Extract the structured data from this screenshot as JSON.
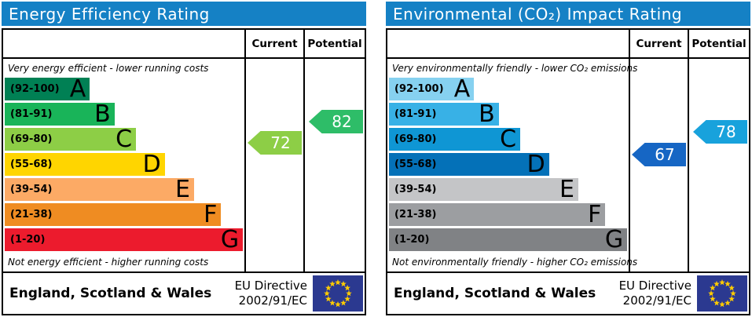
{
  "chart_data": [
    {
      "type": "bar",
      "title": "Energy Efficiency Rating",
      "columns": {
        "current": "Current",
        "potential": "Potential"
      },
      "top_caption": "Very energy efficient - lower running costs",
      "bottom_caption": "Not energy efficient - higher running costs",
      "bands": [
        {
          "letter": "A",
          "range": "(92-100)",
          "lo": 92,
          "hi": 100,
          "color": "#008054",
          "width_pct": 35.5
        },
        {
          "letter": "B",
          "range": "(81-91)",
          "lo": 81,
          "hi": 91,
          "color": "#19b459",
          "width_pct": 45.8
        },
        {
          "letter": "C",
          "range": "(69-80)",
          "lo": 69,
          "hi": 80,
          "color": "#8dce46",
          "width_pct": 54.8
        },
        {
          "letter": "D",
          "range": "(55-68)",
          "lo": 55,
          "hi": 68,
          "color": "#ffd500",
          "width_pct": 66.8
        },
        {
          "letter": "E",
          "range": "(39-54)",
          "lo": 39,
          "hi": 54,
          "color": "#fcaa65",
          "width_pct": 79.0
        },
        {
          "letter": "F",
          "range": "(21-38)",
          "lo": 21,
          "hi": 38,
          "color": "#ef8c22",
          "width_pct": 90.3
        },
        {
          "letter": "G",
          "range": "(1-20)",
          "lo": 1,
          "hi": 20,
          "color": "#ec1b2d",
          "width_pct": 99.4
        }
      ],
      "current": {
        "value": 72,
        "color": "#8dce46"
      },
      "potential": {
        "value": 82,
        "color": "#2ebd68"
      },
      "footer": {
        "region": "England, Scotland & Wales",
        "directive_line1": "EU Directive",
        "directive_line2": "2002/91/EC"
      }
    },
    {
      "type": "bar",
      "title": "Environmental (CO₂) Impact Rating",
      "columns": {
        "current": "Current",
        "potential": "Potential"
      },
      "top_caption": "Very environmentally friendly - lower CO₂ emissions",
      "bottom_caption": "Not environmentally friendly - higher CO₂ emissions",
      "bands": [
        {
          "letter": "A",
          "range": "(92-100)",
          "lo": 92,
          "hi": 100,
          "color": "#86d1f0",
          "width_pct": 35.5
        },
        {
          "letter": "B",
          "range": "(81-91)",
          "lo": 81,
          "hi": 91,
          "color": "#38b1e6",
          "width_pct": 45.8
        },
        {
          "letter": "C",
          "range": "(69-80)",
          "lo": 69,
          "hi": 80,
          "color": "#0f96d4",
          "width_pct": 54.8
        },
        {
          "letter": "D",
          "range": "(55-68)",
          "lo": 55,
          "hi": 68,
          "color": "#0471b8",
          "width_pct": 66.8
        },
        {
          "letter": "E",
          "range": "(39-54)",
          "lo": 39,
          "hi": 54,
          "color": "#c4c5c7",
          "width_pct": 79.0
        },
        {
          "letter": "F",
          "range": "(21-38)",
          "lo": 21,
          "hi": 38,
          "color": "#9c9ea1",
          "width_pct": 90.3
        },
        {
          "letter": "G",
          "range": "(1-20)",
          "lo": 1,
          "hi": 20,
          "color": "#808285",
          "width_pct": 99.4
        }
      ],
      "current": {
        "value": 67,
        "color": "#1666c4"
      },
      "potential": {
        "value": 78,
        "color": "#18a2dc"
      },
      "footer": {
        "region": "England, Scotland & Wales",
        "directive_line1": "EU Directive",
        "directive_line2": "2002/91/EC"
      }
    }
  ],
  "colors": {
    "title_bar": "#1581c5",
    "border": "#000000",
    "flag_blue": "#2b3990",
    "flag_star": "#ffcc00"
  }
}
